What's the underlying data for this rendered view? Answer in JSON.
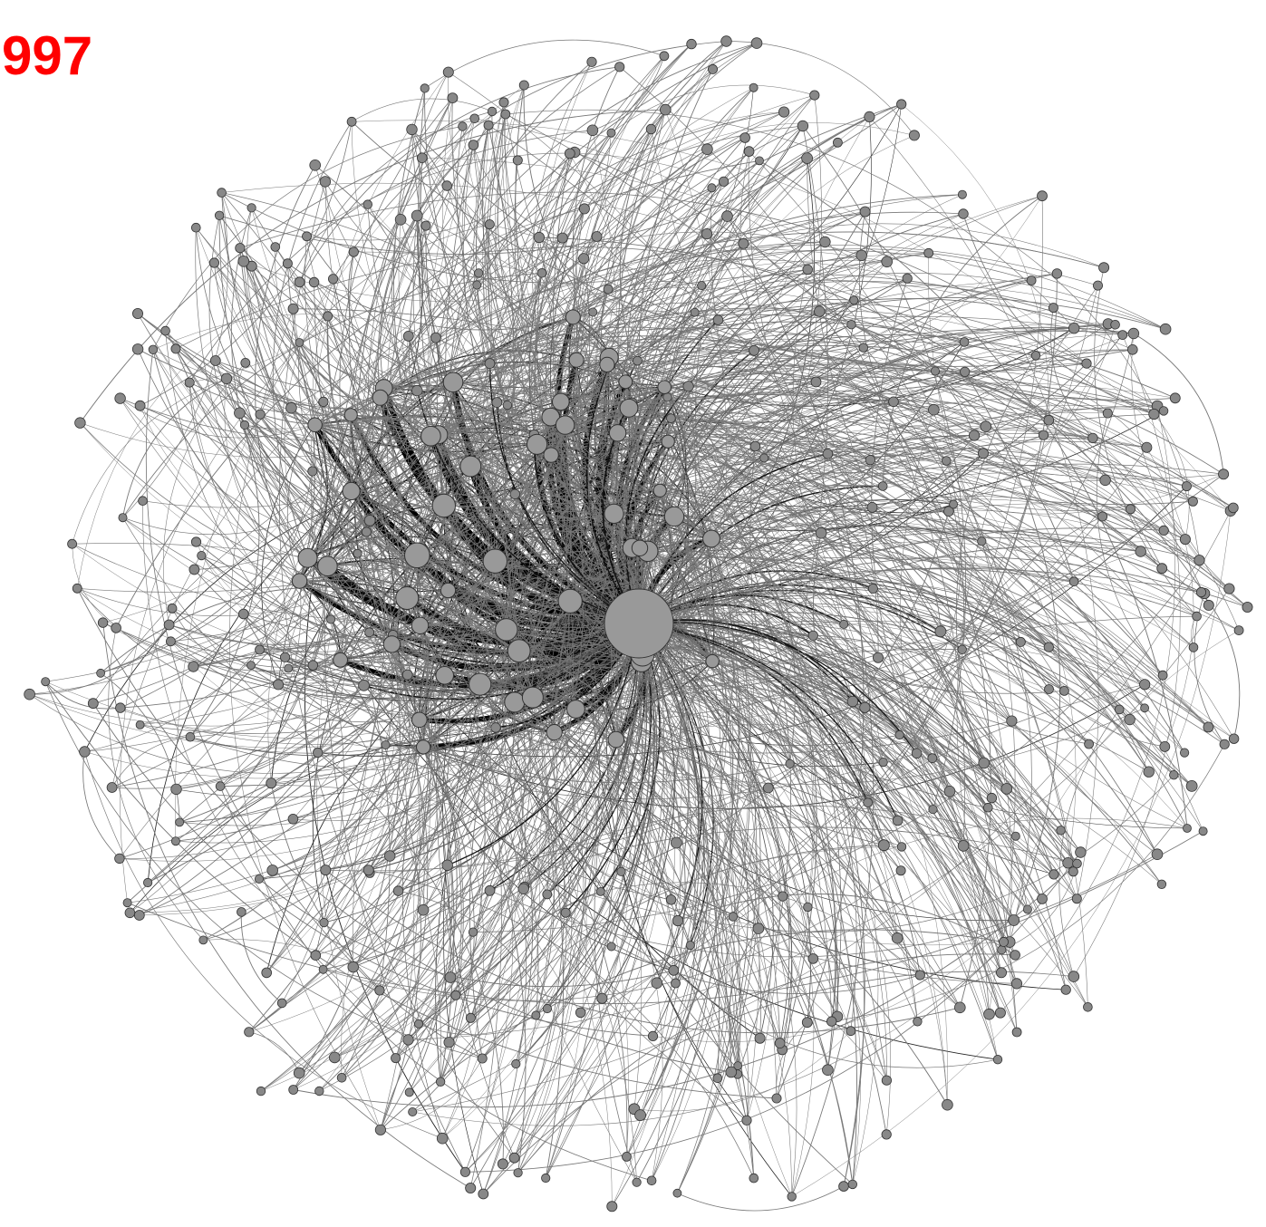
{
  "label": "997"
}
